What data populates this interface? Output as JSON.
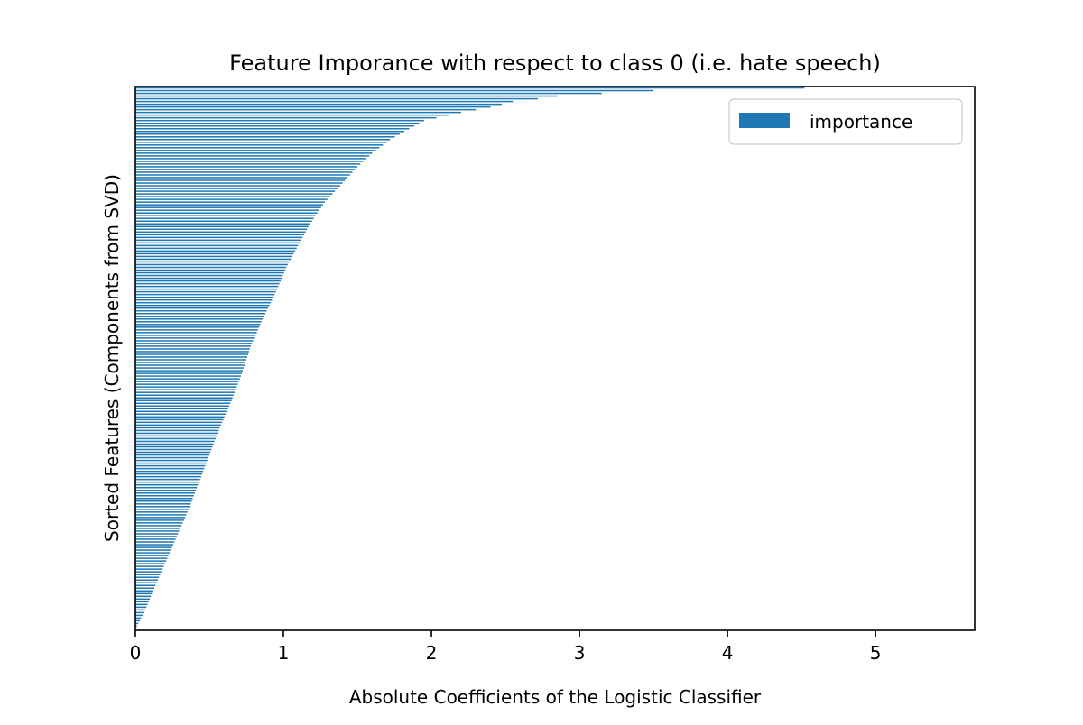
{
  "chart_data": {
    "type": "bar",
    "orientation": "horizontal",
    "title": "Feature Imporance with respect to class 0 (i.e. hate speech)",
    "xlabel": "Absolute Coefficients of the Logistic Classifier",
    "ylabel": "Sorted Features (Components from SVD)",
    "xlim": [
      0,
      5.67
    ],
    "xticks": [
      0,
      1,
      2,
      3,
      4,
      5
    ],
    "ytick_labels_visible": false,
    "grid": false,
    "legend": {
      "position": "top-right",
      "entries": [
        "importance"
      ]
    },
    "colors": {
      "bar": "#1f77b4",
      "axes": "#000000",
      "background": "#ffffff"
    },
    "series": [
      {
        "name": "importance",
        "bar_count": 200,
        "max_value": 4.52,
        "profile_values_at_rank": [
          {
            "rank": 0,
            "value": 4.52
          },
          {
            "rank": 1,
            "value": 3.5
          },
          {
            "rank": 2,
            "value": 3.15
          },
          {
            "rank": 3,
            "value": 2.85
          },
          {
            "rank": 4,
            "value": 2.72
          },
          {
            "rank": 5,
            "value": 2.55
          },
          {
            "rank": 7,
            "value": 2.4
          },
          {
            "rank": 9,
            "value": 2.2
          },
          {
            "rank": 12,
            "value": 1.95
          },
          {
            "rank": 15,
            "value": 1.85
          },
          {
            "rank": 19,
            "value": 1.72
          },
          {
            "rank": 24,
            "value": 1.6
          },
          {
            "rank": 29,
            "value": 1.5
          },
          {
            "rank": 35,
            "value": 1.4
          },
          {
            "rank": 42,
            "value": 1.28
          },
          {
            "rank": 50,
            "value": 1.18
          },
          {
            "rank": 58,
            "value": 1.1
          },
          {
            "rank": 66,
            "value": 1.02
          },
          {
            "rank": 75,
            "value": 0.95
          },
          {
            "rank": 85,
            "value": 0.86
          },
          {
            "rank": 95,
            "value": 0.78
          },
          {
            "rank": 105,
            "value": 0.72
          },
          {
            "rank": 115,
            "value": 0.65
          },
          {
            "rank": 125,
            "value": 0.57
          },
          {
            "rank": 135,
            "value": 0.5
          },
          {
            "rank": 145,
            "value": 0.43
          },
          {
            "rank": 155,
            "value": 0.36
          },
          {
            "rank": 165,
            "value": 0.28
          },
          {
            "rank": 175,
            "value": 0.2
          },
          {
            "rank": 185,
            "value": 0.12
          },
          {
            "rank": 193,
            "value": 0.06
          },
          {
            "rank": 199,
            "value": 0.0
          }
        ]
      }
    ]
  }
}
